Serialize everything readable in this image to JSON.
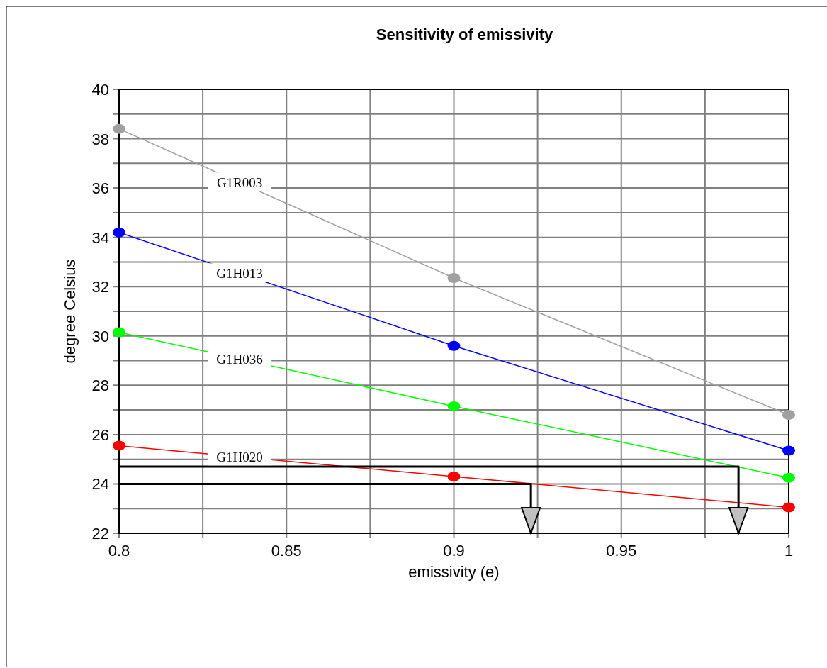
{
  "chart_data": {
    "type": "line",
    "title": "Sensitivity of emissivity",
    "xlabel": "emissivity (e)",
    "ylabel": "degree Celsius",
    "x": [
      0.8,
      0.9,
      1
    ],
    "series": [
      {
        "name": "G1R003",
        "color": "#a0a0a0",
        "values": [
          38.4,
          32.35,
          26.8
        ]
      },
      {
        "name": "G1H013",
        "color": "#0000ff",
        "values": [
          34.2,
          29.6,
          25.35
        ]
      },
      {
        "name": "G1H036",
        "color": "#00ff00",
        "values": [
          30.15,
          27.15,
          24.25
        ]
      },
      {
        "name": "G1H020",
        "color": "#ff0000",
        "values": [
          25.55,
          24.3,
          23.05
        ]
      },
      {
        "color": "#000000",
        "x": [
          0.8,
          0.985,
          0.985
        ],
        "values": [
          24.7,
          24.7,
          22
        ],
        "marker": "none"
      },
      {
        "color": "#000000",
        "x": [
          0.8,
          0.923,
          0.923
        ],
        "values": [
          24,
          24,
          22
        ],
        "marker": "none"
      }
    ],
    "xlim": [
      0.8,
      1
    ],
    "xticks": [
      0.8,
      {
        "value": 0.825,
        "label": null
      },
      0.85,
      {
        "value": 0.875,
        "label": null
      },
      0.9,
      {
        "value": 0.925,
        "label": null
      },
      0.95,
      {
        "value": 0.975,
        "label": null
      },
      1
    ],
    "ylim": [
      22,
      40
    ],
    "yticks": [
      22,
      {
        "value": 23,
        "label": null
      },
      24,
      {
        "value": 25,
        "label": null
      },
      26,
      {
        "value": 27,
        "label": null
      },
      28,
      {
        "value": 29,
        "label": null
      },
      30,
      {
        "value": 31,
        "label": null
      },
      32,
      {
        "value": 33,
        "label": null
      },
      34,
      {
        "value": 35,
        "label": null
      },
      36,
      {
        "value": 37,
        "label": null
      },
      38,
      {
        "value": 39,
        "label": null
      },
      40
    ],
    "grid": true,
    "legend": false,
    "marker": "circle",
    "line_style": "solid"
  }
}
